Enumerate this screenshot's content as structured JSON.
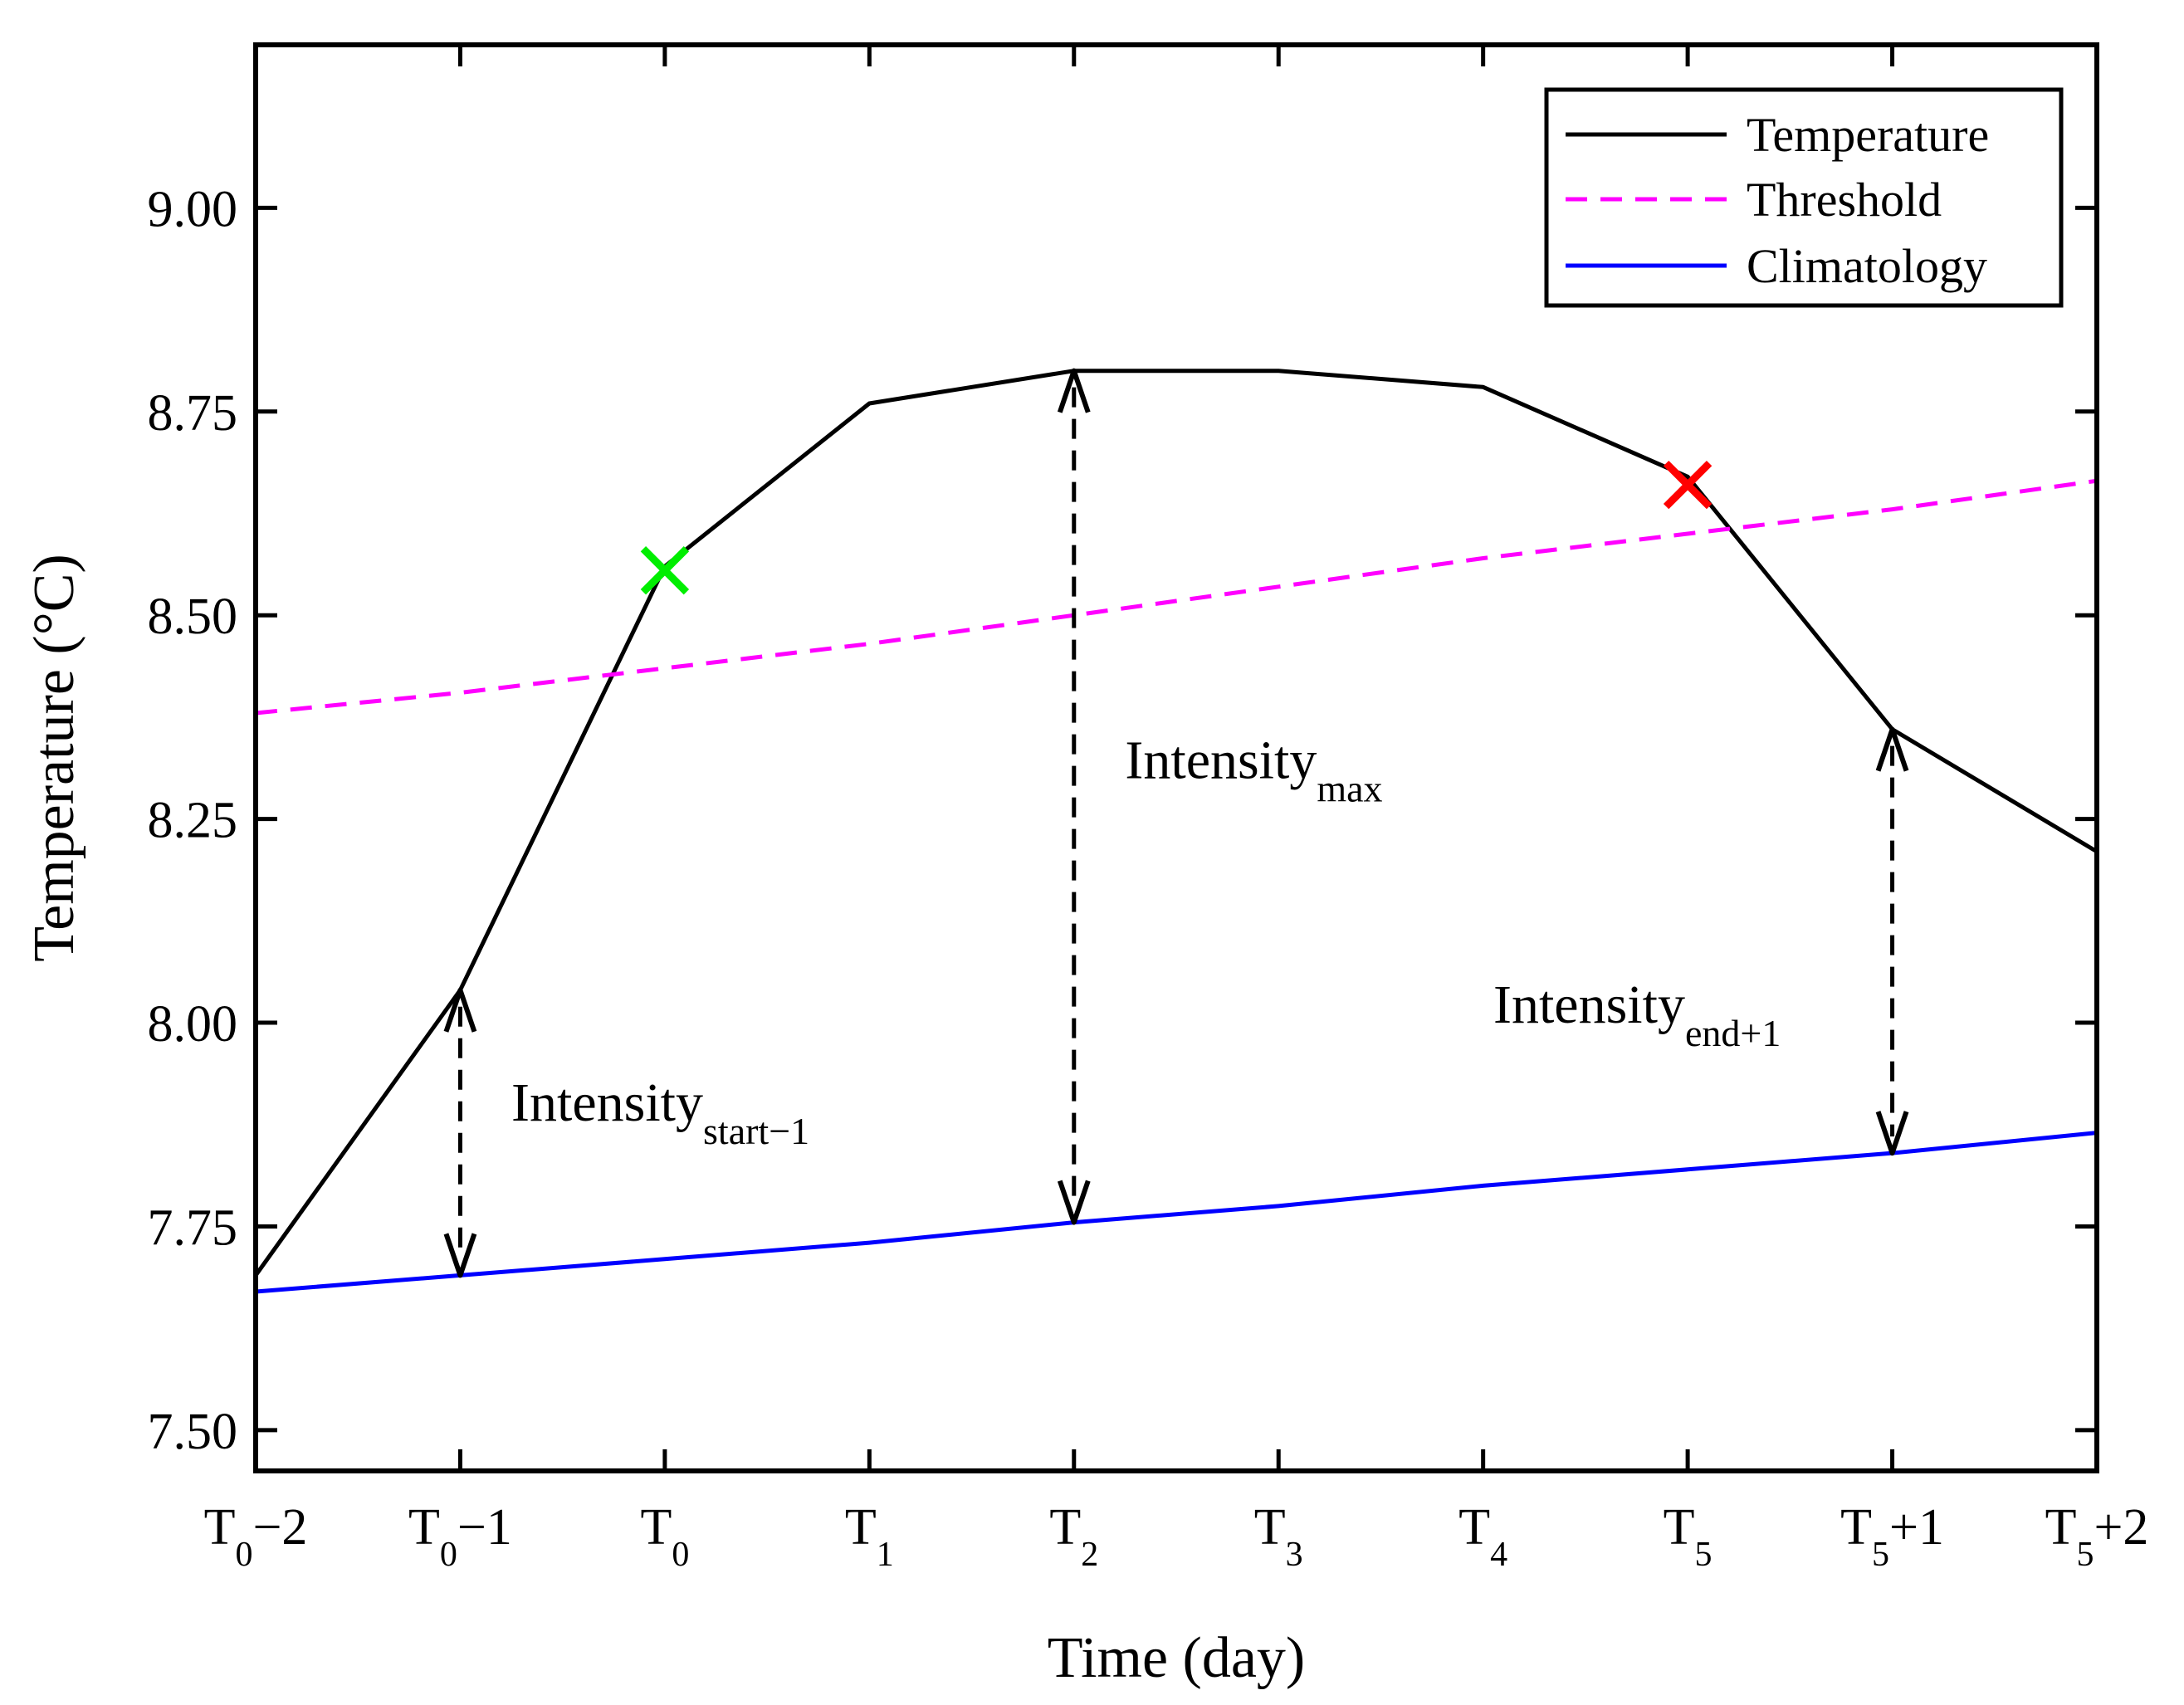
{
  "chart_data": {
    "type": "line",
    "xlabel": "Time (day)",
    "ylabel": "Temperature (°C)",
    "xlim": [
      0,
      9
    ],
    "ylim": [
      7.45,
      9.2
    ],
    "yticks": [
      7.5,
      7.75,
      8.0,
      8.25,
      8.5,
      8.75,
      9.0
    ],
    "ytick_labels": [
      "7.50",
      "7.75",
      "8.00",
      "8.25",
      "8.50",
      "8.75",
      "9.00"
    ],
    "xticks": [
      {
        "value": 0,
        "base": "T",
        "sub": "0",
        "suffix": "−2"
      },
      {
        "value": 1,
        "base": "T",
        "sub": "0",
        "suffix": "−1"
      },
      {
        "value": 2,
        "base": "T",
        "sub": "0",
        "suffix": ""
      },
      {
        "value": 3,
        "base": "T",
        "sub": "1",
        "suffix": ""
      },
      {
        "value": 4,
        "base": "T",
        "sub": "2",
        "suffix": ""
      },
      {
        "value": 5,
        "base": "T",
        "sub": "3",
        "suffix": ""
      },
      {
        "value": 6,
        "base": "T",
        "sub": "4",
        "suffix": ""
      },
      {
        "value": 7,
        "base": "T",
        "sub": "5",
        "suffix": ""
      },
      {
        "value": 8,
        "base": "T",
        "sub": "5",
        "suffix": "+1"
      },
      {
        "value": 9,
        "base": "T",
        "sub": "5",
        "suffix": "+2"
      }
    ],
    "series": [
      {
        "name": "Temperature",
        "color": "#000000",
        "dash": "solid",
        "x": [
          0,
          1,
          2,
          3,
          4,
          5,
          6,
          7,
          8,
          9
        ],
        "y": [
          7.69,
          8.04,
          8.56,
          8.76,
          8.8,
          8.8,
          8.78,
          8.67,
          8.36,
          8.21
        ]
      },
      {
        "name": "Threshold",
        "color": "#ff00ff",
        "dash": "dashed",
        "x": [
          0,
          1,
          2,
          3,
          4,
          5,
          6,
          7,
          8,
          9
        ],
        "y": [
          8.38,
          8.405,
          8.435,
          8.465,
          8.5,
          8.535,
          8.57,
          8.6,
          8.63,
          8.665
        ]
      },
      {
        "name": "Climatology",
        "color": "#0000ff",
        "dash": "solid",
        "x": [
          0,
          1,
          2,
          3,
          4,
          5,
          6,
          7,
          8,
          9
        ],
        "y": [
          7.67,
          7.69,
          7.71,
          7.73,
          7.755,
          7.775,
          7.8,
          7.82,
          7.84,
          7.865
        ]
      }
    ],
    "markers": [
      {
        "name": "start-marker",
        "x": 2.0,
        "y": 8.555,
        "color": "#00ee00",
        "shape": "x"
      },
      {
        "name": "end-marker",
        "x": 7.0,
        "y": 8.66,
        "color": "#ff0000",
        "shape": "x"
      }
    ],
    "arrows": [
      {
        "name": "intensity-start-arrow",
        "x": 1,
        "y_top": 8.04,
        "y_bottom": 7.69
      },
      {
        "name": "intensity-max-arrow",
        "x": 4,
        "y_top": 8.8,
        "y_bottom": 7.755
      },
      {
        "name": "intensity-end-arrow",
        "x": 8,
        "y_top": 8.36,
        "y_bottom": 7.84
      }
    ],
    "annotations": [
      {
        "name": "intensity-start-label",
        "text": "Intensity",
        "sub": "start−1",
        "x": 1.25,
        "y": 7.88
      },
      {
        "name": "intensity-max-label",
        "text": "Intensity",
        "sub": "max",
        "x": 4.25,
        "y": 8.3
      },
      {
        "name": "intensity-end-label",
        "text": "Intensity",
        "sub": "end+1",
        "x": 6.05,
        "y": 8.0
      }
    ],
    "legend": {
      "position": "top-right",
      "entries": [
        "Temperature",
        "Threshold",
        "Climatology"
      ]
    }
  }
}
